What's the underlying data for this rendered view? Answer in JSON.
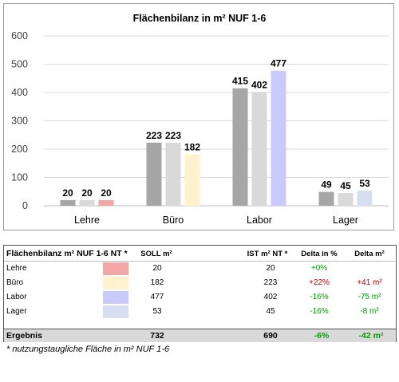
{
  "chart_data": {
    "type": "bar",
    "title": "Flächenbilanz in m² NUF 1-6",
    "categories": [
      "Lehre",
      "Büro",
      "Labor",
      "Lager"
    ],
    "series": [
      {
        "values": [
          20,
          223,
          415,
          49
        ],
        "color": "#a6a6a6"
      },
      {
        "values": [
          20,
          223,
          402,
          45
        ],
        "color": "#d9d9d9"
      },
      {
        "values": [
          20,
          182,
          477,
          53
        ],
        "colors": [
          "#f4a6a6",
          "#fff2cc",
          "#c9c9fb",
          "#d6dff2"
        ]
      }
    ],
    "ylim": [
      0,
      600
    ],
    "yticks": [
      0,
      100,
      200,
      300,
      400,
      500,
      600
    ],
    "grid": true,
    "legend": "none"
  },
  "table": {
    "header": {
      "label": "Flächenbilanz m² NUF 1-6 NT *",
      "soll": "SOLL m²",
      "ist": "IST m² NT *",
      "delta_pct": "Delta in %",
      "delta_m2": "Delta m²"
    },
    "rows": [
      {
        "name": "Lehre",
        "color": "#f4a6a6",
        "soll": "20",
        "ist": "20",
        "delta_pct": "+0%",
        "delta_pct_color": "#00a000",
        "delta_m2": "",
        "delta_m2_color": "#00a000"
      },
      {
        "name": "Büro",
        "color": "#fff2cc",
        "soll": "182",
        "ist": "223",
        "delta_pct": "+22%",
        "delta_pct_color": "#c00000",
        "delta_m2": "+41 m²",
        "delta_m2_color": "#c00000"
      },
      {
        "name": "Labor",
        "color": "#c9c9fb",
        "soll": "477",
        "ist": "402",
        "delta_pct": "-16%",
        "delta_pct_color": "#00a000",
        "delta_m2": "-75 m²",
        "delta_m2_color": "#00a000"
      },
      {
        "name": "Lager",
        "color": "#d6dff2",
        "soll": "53",
        "ist": "45",
        "delta_pct": "-16%",
        "delta_pct_color": "#00a000",
        "delta_m2": "-8 m²",
        "delta_m2_color": "#00a000"
      }
    ],
    "total": {
      "name": "Ergebnis",
      "soll": "732",
      "ist": "690",
      "delta_pct": "-6%",
      "delta_m2": "-42 m²"
    }
  },
  "footnote": "* nutzungstaugliche Fläche in m² NUF 1-6"
}
